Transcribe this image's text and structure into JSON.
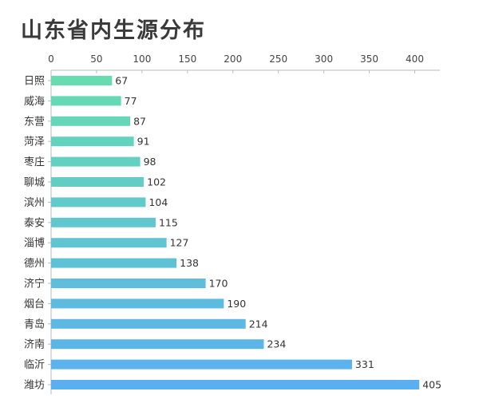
{
  "chart_data": {
    "type": "bar",
    "orientation": "horizontal",
    "title": "山东省内生源分布",
    "xlabel": "",
    "ylabel": "",
    "xlim": [
      0,
      425
    ],
    "ticks": [
      "0",
      "50",
      "100",
      "150",
      "200",
      "250",
      "300",
      "350",
      "400"
    ],
    "tick_values": [
      0,
      50,
      100,
      150,
      200,
      250,
      300,
      350,
      400
    ],
    "axis_position": "top",
    "grid": false,
    "categories": [
      "日照",
      "威海",
      "东营",
      "菏泽",
      "枣庄",
      "聊城",
      "滨州",
      "泰安",
      "淄博",
      "德州",
      "济宁",
      "烟台",
      "青岛",
      "济南",
      "临沂",
      "潍坊"
    ],
    "values": [
      67,
      77,
      87,
      91,
      98,
      102,
      104,
      115,
      127,
      138,
      170,
      190,
      214,
      234,
      331,
      405
    ],
    "colors": {
      "gradient_start": "#67dcb0",
      "gradient_end": "#5aaff0",
      "axis": "#bbbbbb"
    }
  }
}
